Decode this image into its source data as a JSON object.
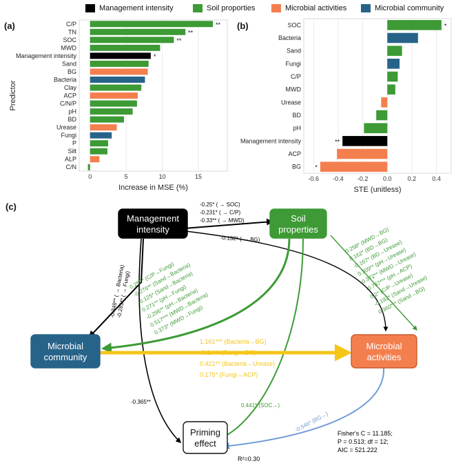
{
  "legend": [
    {
      "label": "Management intensity",
      "color": "#000000"
    },
    {
      "label": "Soil proporties",
      "color": "#3d9a35"
    },
    {
      "label": "Microbial activities",
      "color": "#f47f4e"
    },
    {
      "label": "Microbial community",
      "color": "#276388"
    }
  ],
  "panels": {
    "a": "(a)",
    "b": "(b)",
    "c": "(c)"
  },
  "colors": {
    "management": "#000000",
    "soil": "#3d9a35",
    "activities": "#f47f4e",
    "community": "#276388"
  },
  "chart_data": [
    {
      "type": "bar",
      "orientation": "horizontal",
      "title": "",
      "xlabel": "Increase in MSE (%)",
      "ylabel": "Predictor",
      "xlim": [
        -1.5,
        19
      ],
      "xticks": [
        0,
        5,
        10,
        15
      ],
      "categories": [
        "C/P",
        "TN",
        "SOC",
        "MWD",
        "Management intensity",
        "Sand",
        "BG",
        "Bacteria",
        "Clay",
        "ACP",
        "C/N/P",
        "pH",
        "BD",
        "Urease",
        "Fungi",
        "P",
        "Silt",
        "ALP",
        "C/N"
      ],
      "values": [
        17.0,
        13.2,
        11.6,
        9.7,
        8.4,
        8.1,
        8.0,
        7.6,
        7.1,
        6.6,
        6.5,
        5.9,
        4.7,
        3.7,
        3.0,
        2.5,
        2.4,
        1.3,
        -0.3
      ],
      "groups": [
        "soil",
        "soil",
        "soil",
        "soil",
        "management",
        "soil",
        "activities",
        "community",
        "soil",
        "activities",
        "soil",
        "soil",
        "soil",
        "activities",
        "community",
        "soil",
        "soil",
        "activities",
        "soil"
      ],
      "significance": [
        "**",
        "**",
        "**",
        "",
        "*",
        "",
        "",
        "",
        "",
        "",
        "",
        "",
        "",
        "",
        "",
        "",
        "",
        "",
        ""
      ]
    },
    {
      "type": "bar",
      "orientation": "horizontal",
      "title": "",
      "xlabel": "STE (unitless)",
      "ylabel": "",
      "xlim": [
        -0.68,
        0.52
      ],
      "xticks": [
        -0.6,
        -0.4,
        -0.2,
        0.0,
        0.2,
        0.4
      ],
      "categories": [
        "SOC",
        "Bacteria",
        "Sand",
        "Fungi",
        "C/P",
        "MWD",
        "Urease",
        "BD",
        "pH",
        "Management intensity",
        "ACP",
        "BG"
      ],
      "values": [
        0.441,
        0.25,
        0.12,
        0.1,
        0.085,
        0.065,
        -0.05,
        -0.09,
        -0.19,
        -0.365,
        -0.41,
        -0.546
      ],
      "groups": [
        "soil",
        "community",
        "soil",
        "community",
        "soil",
        "soil",
        "activities",
        "soil",
        "soil",
        "management",
        "activities",
        "activities"
      ],
      "significance": [
        "*",
        "",
        "",
        "",
        "",
        "",
        "",
        "",
        "",
        "**",
        "",
        "*"
      ]
    }
  ],
  "path_diagram": {
    "nodes": {
      "management": "Management intensity",
      "soil": "Soil properties",
      "community": "Microbial community",
      "activities": "Microbial activities",
      "priming": "Priming effect"
    },
    "labels": {
      "mgmt_soil": [
        "-0.25* ( → SOC)",
        "-0.231* ( → C/P)",
        "-0.33** ( → MWD)"
      ],
      "mgmt_acts": "-0.132* ( → BG)",
      "mgmt_comm": [
        "-0.348** ( → Bacteria)",
        "-0.281** ( → Fungi)"
      ],
      "soil_comm": [
        "0.252* (C/P→Fungi)",
        "-0.276** (Sand→Bacteria)",
        "-0.125* (Sand→Bacteria)",
        "0.271** (pH→Fungi)",
        "-0.296** (pH→Bacteria)",
        "0.517*** (MWD→Bacteria)",
        "0.373* (MWD→Fungi)"
      ],
      "soil_acts": [
        "0.258* (MWD→BG)",
        "0.162* (BD→BG)",
        "-0.167* (BD→Urease)",
        "0.309** (pH→Urease)",
        "0.372** (MWD→Urease)",
        "-0.747*** (pH→ACP)",
        "0.2* (C/P→Urease)",
        "-0.192* (Sand→Urease)",
        "0.360*** (Sand→BG)"
      ],
      "comm_acts": [
        "1.161*** (Bacteria→BG)",
        "-0.244* (Fungi→BG)",
        "0.421** (Bacteria→Urease)",
        "0.175* (Fungi→ACP)"
      ],
      "mgmt_priming": "-0.365**",
      "soil_priming": "0.441* (SOC→)",
      "acts_priming": "-0.546* (BG→)",
      "r2": "R²=0.30",
      "fit": [
        "Fisher's C = 11.185;",
        "P = 0.513; df = 12;",
        "AIC = 521.222"
      ]
    }
  }
}
